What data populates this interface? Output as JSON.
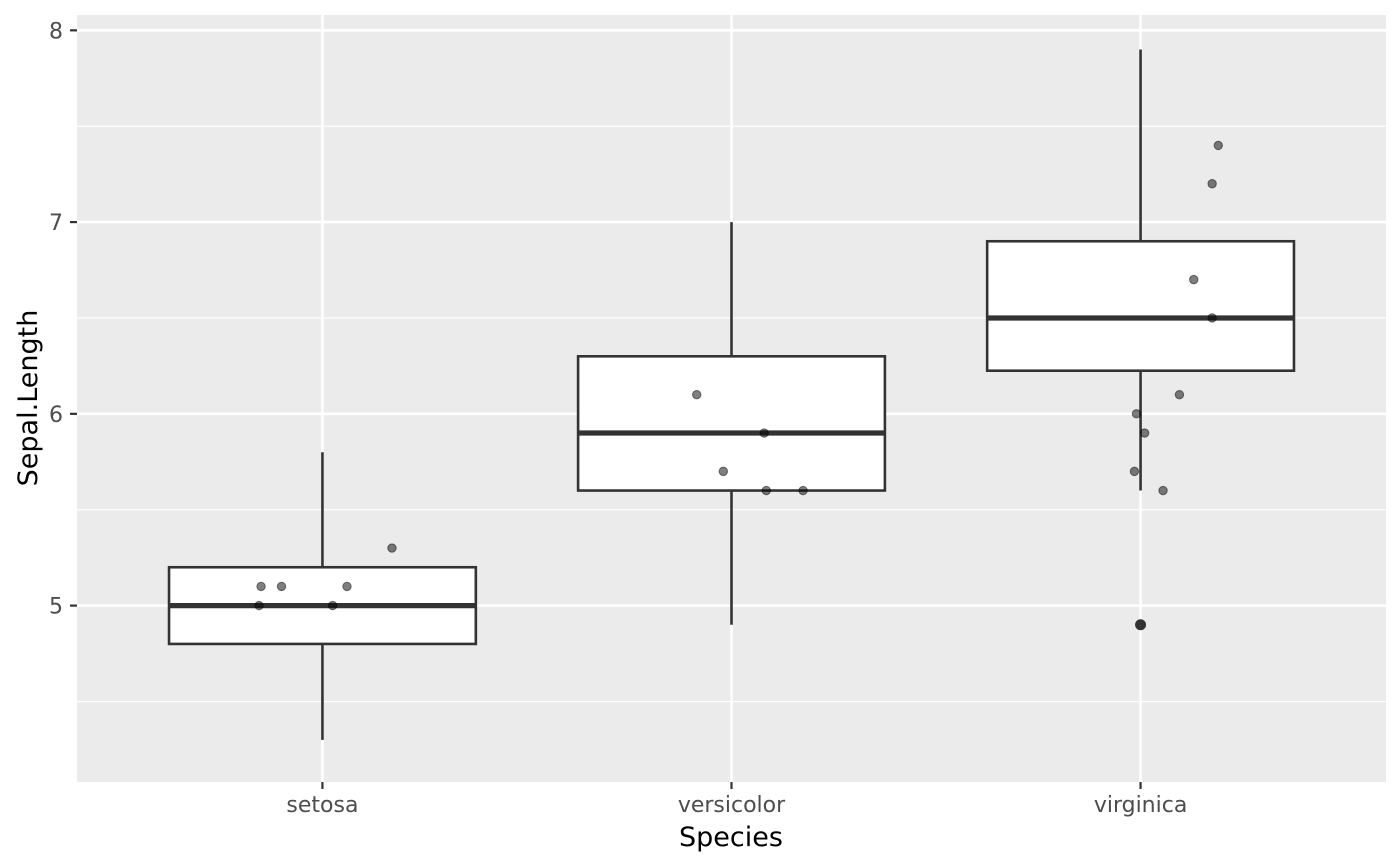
{
  "chart_data": {
    "type": "boxplot",
    "xlabel": "Species",
    "ylabel": "Sepal.Length",
    "ylim": [
      4.08,
      8.08
    ],
    "yticks": [
      5,
      6,
      7,
      8
    ],
    "y_minor_ticks": [
      4.5,
      5.5,
      6.5,
      7.5
    ],
    "grid": true,
    "categories": [
      "setosa",
      "versicolor",
      "virginica"
    ],
    "boxes": [
      {
        "category": "setosa",
        "whisker_low": 4.3,
        "q1": 4.8,
        "median": 5.0,
        "q3": 5.2,
        "whisker_high": 5.8,
        "outliers": []
      },
      {
        "category": "versicolor",
        "whisker_low": 4.9,
        "q1": 5.6,
        "median": 5.9,
        "q3": 6.3,
        "whisker_high": 7.0,
        "outliers": []
      },
      {
        "category": "virginica",
        "whisker_low": 5.6,
        "q1": 6.225,
        "median": 6.5,
        "q3": 6.9,
        "whisker_high": 7.9,
        "outliers": [
          4.9
        ]
      }
    ],
    "jitter_points": [
      {
        "category": "setosa",
        "offset": -0.15,
        "y": 5.1
      },
      {
        "category": "setosa",
        "offset": -0.1,
        "y": 5.1
      },
      {
        "category": "setosa",
        "offset": 0.06,
        "y": 5.1
      },
      {
        "category": "setosa",
        "offset": 0.17,
        "y": 5.3
      },
      {
        "category": "setosa",
        "offset": -0.155,
        "y": 5.0
      },
      {
        "category": "setosa",
        "offset": 0.025,
        "y": 5.0
      },
      {
        "category": "versicolor",
        "offset": -0.085,
        "y": 6.1
      },
      {
        "category": "versicolor",
        "offset": 0.08,
        "y": 5.9
      },
      {
        "category": "versicolor",
        "offset": -0.02,
        "y": 5.7
      },
      {
        "category": "versicolor",
        "offset": 0.085,
        "y": 5.6
      },
      {
        "category": "versicolor",
        "offset": 0.175,
        "y": 5.6
      },
      {
        "category": "virginica",
        "offset": 0.19,
        "y": 7.4
      },
      {
        "category": "virginica",
        "offset": 0.175,
        "y": 7.2
      },
      {
        "category": "virginica",
        "offset": 0.13,
        "y": 6.7
      },
      {
        "category": "virginica",
        "offset": 0.175,
        "y": 6.5
      },
      {
        "category": "virginica",
        "offset": 0.095,
        "y": 6.1
      },
      {
        "category": "virginica",
        "offset": -0.01,
        "y": 6.0
      },
      {
        "category": "virginica",
        "offset": 0.01,
        "y": 5.9
      },
      {
        "category": "virginica",
        "offset": -0.015,
        "y": 5.7
      },
      {
        "category": "virginica",
        "offset": 0.055,
        "y": 5.6
      }
    ],
    "colors": {
      "panel_background": "#ebebeb",
      "grid": "#ffffff",
      "box_fill": "#ffffff",
      "box_line": "#333333",
      "point": "#000000",
      "point_opacity": 0.5
    }
  }
}
